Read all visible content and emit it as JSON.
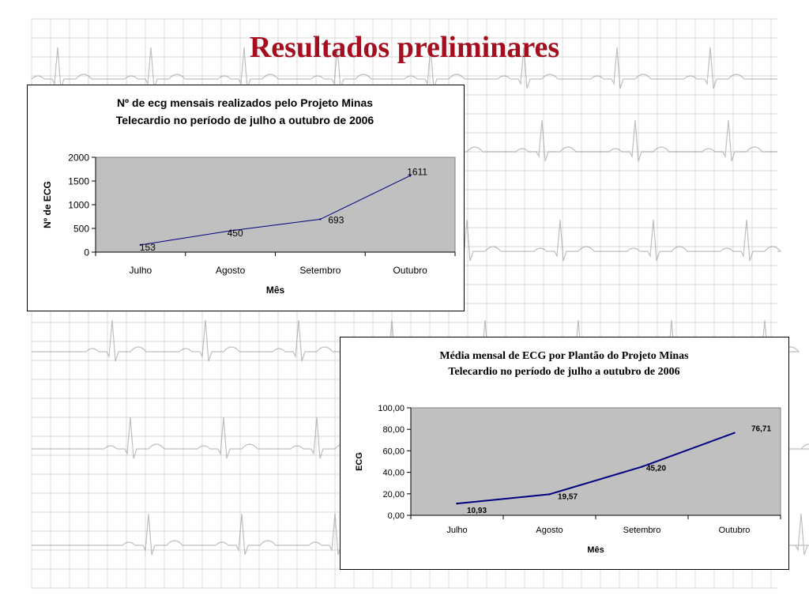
{
  "slide": {
    "title": "Resultados preliminares"
  },
  "colors": {
    "title": "#a50e1e",
    "plot_area": "#c0c0c0",
    "series_line": "#000080",
    "ecg_trace": "#8a8a8a",
    "ecg_grid": "#d9d9d9"
  },
  "chart_data": [
    {
      "type": "line",
      "title_lines": [
        "Nº de ecg mensais realizados pelo Projeto Minas",
        "Telecardio no período de julho a outubro de 2006"
      ],
      "xlabel": "Mês",
      "ylabel": "Nº de ECG",
      "categories": [
        "Julho",
        "Agosto",
        "Setembro",
        "Outubro"
      ],
      "values": [
        153,
        450,
        693,
        1611
      ],
      "data_labels": [
        "153",
        "450",
        "693",
        "1611"
      ],
      "ylim": [
        0,
        2000
      ],
      "yticks": [
        0,
        500,
        1000,
        1500,
        2000
      ],
      "ytick_labels": [
        "0",
        "500",
        "1000",
        "1500",
        "2000"
      ],
      "grid": false,
      "legend": "none"
    },
    {
      "type": "line",
      "title_lines": [
        "Média mensal de ECG por Plantão do Projeto Minas",
        "Telecardio no período de julho a outubro de 2006"
      ],
      "xlabel": "Mês",
      "ylabel": "ECG",
      "categories": [
        "Julho",
        "Agosto",
        "Setembro",
        "Outubro"
      ],
      "values": [
        10.93,
        19.57,
        45.2,
        76.71
      ],
      "data_labels": [
        "10,93",
        "19,57",
        "45,20",
        "76,71"
      ],
      "ylim": [
        0,
        100
      ],
      "yticks": [
        0,
        20,
        40,
        60,
        80,
        100
      ],
      "ytick_labels": [
        "0,00",
        "20,00",
        "40,00",
        "60,00",
        "80,00",
        "100,00"
      ],
      "grid": false,
      "legend": "none"
    }
  ]
}
